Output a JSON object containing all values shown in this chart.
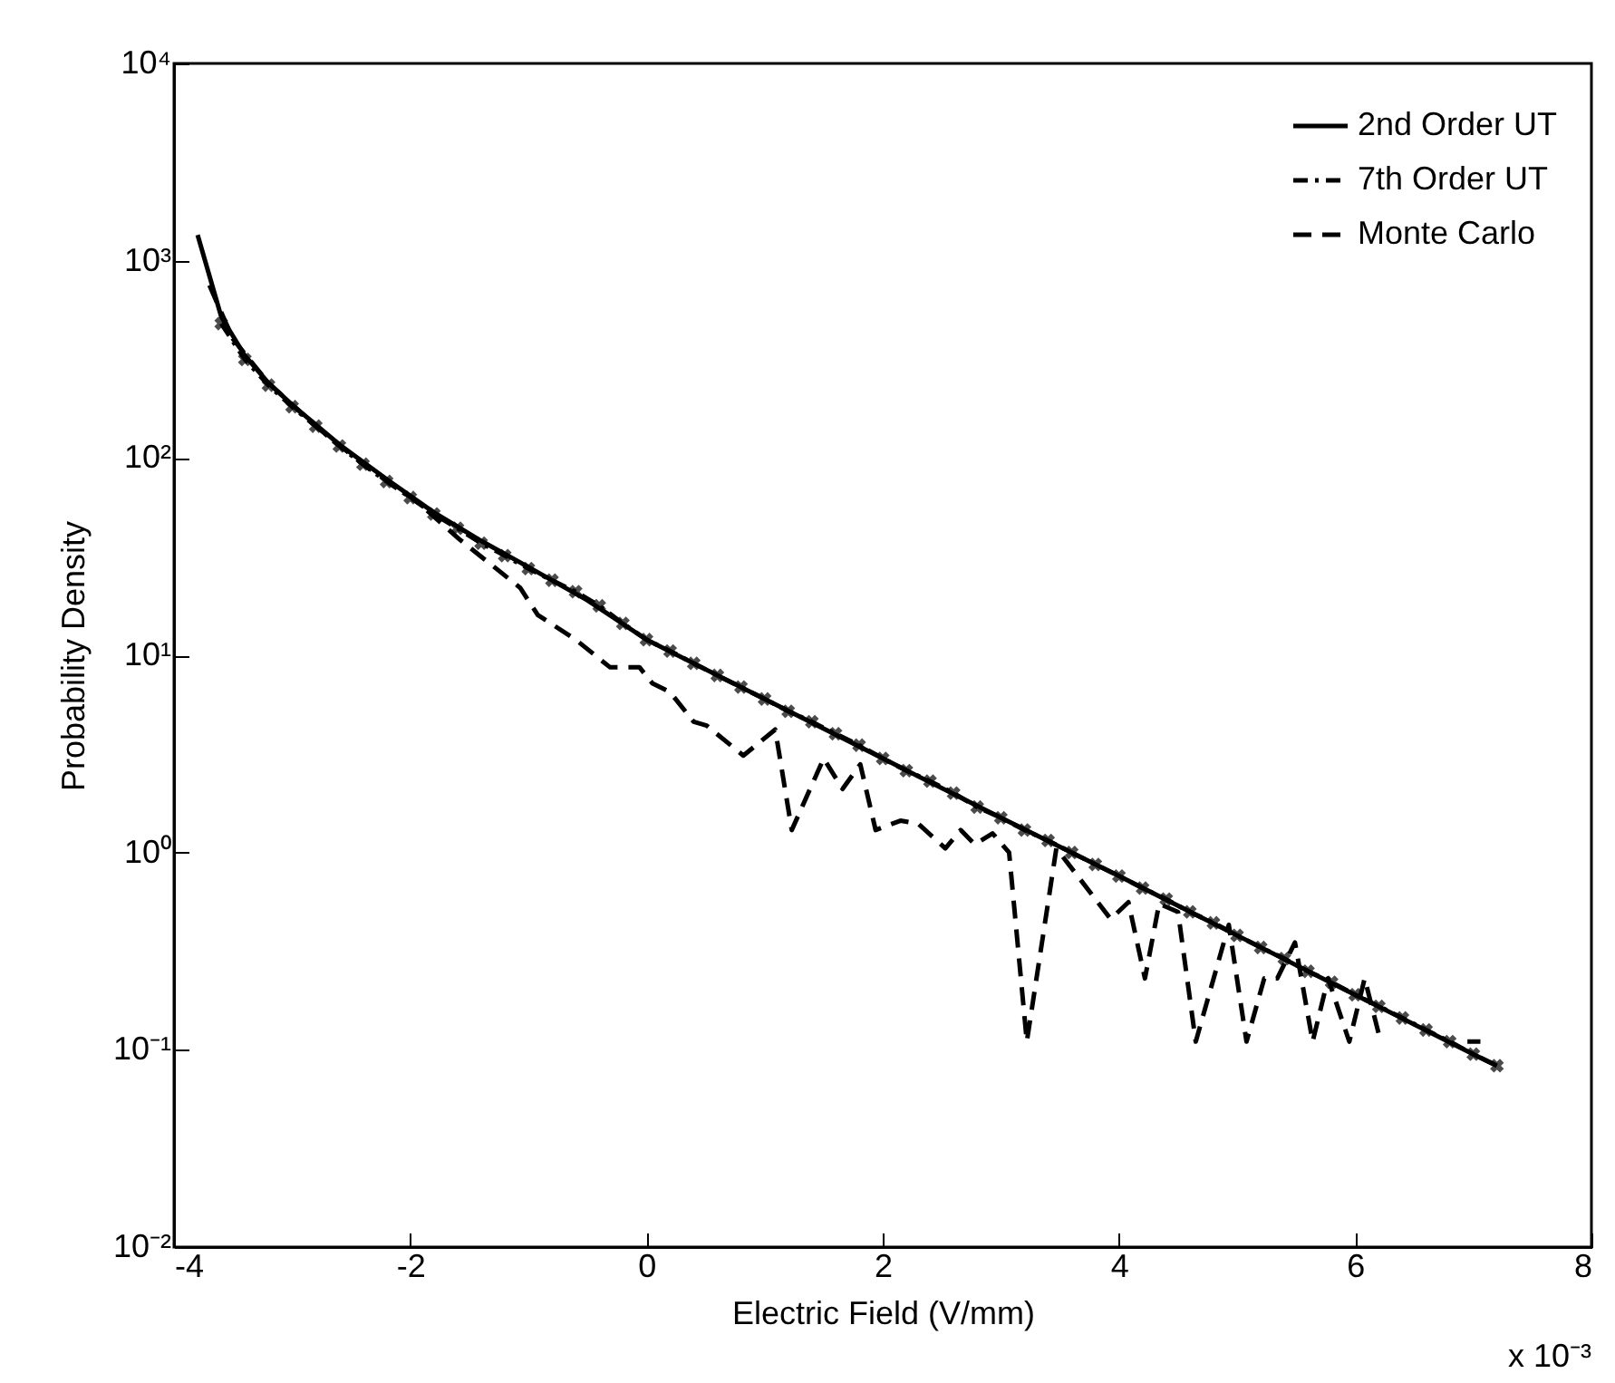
{
  "chart_data": {
    "type": "line",
    "xlabel": "Electric Field (V/mm)",
    "ylabel": "Probability Density",
    "annotations": [
      "x 10⁻³"
    ],
    "log": "y",
    "grid": false,
    "legend": "top right",
    "xlim": [
      -4,
      8
    ],
    "xticks": [
      -4,
      -2,
      0,
      2,
      4,
      6,
      8
    ],
    "ylim": [
      0.01,
      10000
    ],
    "yticks": [
      {
        "value": 0.01,
        "label": "10⁻²"
      },
      {
        "value": 0.1,
        "label": "10⁻¹"
      },
      {
        "value": 1,
        "label": "10⁰"
      },
      {
        "value": 10,
        "label": "10¹"
      },
      {
        "value": 100,
        "label": "10²"
      },
      {
        "value": 1000,
        "label": "10³"
      },
      {
        "value": 10000,
        "label": "10⁴"
      }
    ],
    "series": [
      {
        "name": "2nd Order UT",
        "color": "#000000",
        "line_style": "solid",
        "x": [
          -3.8,
          -3.6,
          -3.4,
          -3.2,
          -3.0,
          -2.6,
          -2.2,
          -1.8,
          -1.4,
          -1.0,
          -0.5,
          0,
          1,
          2,
          3,
          4,
          5,
          6,
          7,
          7.2
        ],
        "values": [
          1350,
          520,
          330,
          240,
          186,
          117,
          78,
          53,
          38,
          28,
          19,
          12,
          6,
          3,
          1.5,
          0.76,
          0.38,
          0.19,
          0.095,
          0.083
        ]
      },
      {
        "name": "7th Order UT",
        "color": "#000000",
        "line_style": "dashdot",
        "marker": "cross",
        "x": [
          -3.6,
          -3.4,
          -3.2,
          -3.0,
          -2.8,
          -2.6,
          -2.4,
          -2.2,
          -2.0,
          -1.8,
          -1.6,
          -1.4,
          -1.2,
          -1.0,
          -0.8,
          -0.6,
          -0.4,
          -0.2,
          0,
          0.2,
          0.4,
          0.6,
          0.8,
          1.0,
          1.2,
          1.4,
          1.6,
          1.8,
          2.0,
          2.2,
          2.4,
          2.6,
          2.8,
          3.0,
          3.2,
          3.4,
          3.6,
          3.8,
          4.0,
          4.2,
          4.4,
          4.6,
          4.8,
          5.0,
          5.2,
          5.4,
          5.6,
          5.8,
          6.0,
          6.2,
          6.4,
          6.6,
          6.8,
          7.0,
          7.2
        ],
        "values": [
          480,
          316,
          234,
          182,
          145,
          115,
          93,
          76,
          63,
          52,
          44,
          37,
          32,
          27.5,
          24,
          21,
          17.8,
          14.5,
          12,
          10.5,
          9.1,
          7.9,
          6.9,
          6.0,
          5.2,
          4.6,
          4.0,
          3.5,
          3.0,
          2.6,
          2.3,
          2.0,
          1.7,
          1.5,
          1.3,
          1.15,
          1.0,
          0.87,
          0.76,
          0.66,
          0.58,
          0.5,
          0.44,
          0.38,
          0.33,
          0.29,
          0.25,
          0.22,
          0.19,
          0.166,
          0.145,
          0.126,
          0.11,
          0.095,
          0.083
        ]
      },
      {
        "name": "Monte Carlo",
        "color": "#000000",
        "line_style": "dashed",
        "x": [
          -3.7,
          -3.5,
          -3.2,
          -2.8,
          -2.4,
          -1.94,
          -1.59,
          -1.07,
          -0.92,
          -0.6,
          -0.31,
          -0.06,
          0.05,
          0.2,
          0.4,
          0.51,
          0.82,
          1.09,
          1.23,
          1.5,
          1.66,
          1.81,
          1.94,
          2.15,
          2.3,
          2.53,
          2.66,
          2.78,
          2.93,
          3.07,
          3.22,
          3.47,
          3.93,
          4.08,
          4.22,
          4.34,
          4.5,
          4.65,
          4.93,
          5.08,
          5.23,
          5.34,
          5.49,
          5.64,
          5.77,
          5.95,
          6.08,
          6.2,
          6.6,
          6.95,
          7.06
        ],
        "values": [
          750,
          400,
          240,
          145,
          93,
          60,
          39,
          22,
          16,
          12,
          8.7,
          8.7,
          7.2,
          6.5,
          4.6,
          4.4,
          3.1,
          4.2,
          1.3,
          3.0,
          2.1,
          2.8,
          1.3,
          1.45,
          1.4,
          1.05,
          1.3,
          1.1,
          1.25,
          1.0,
          0.11,
          1.05,
          0.46,
          0.56,
          0.23,
          0.55,
          0.5,
          0.11,
          0.43,
          0.11,
          0.23,
          0.23,
          0.35,
          0.11,
          0.23,
          0.11,
          0.23,
          0.12,
          null,
          0.11,
          0.11
        ]
      }
    ]
  }
}
